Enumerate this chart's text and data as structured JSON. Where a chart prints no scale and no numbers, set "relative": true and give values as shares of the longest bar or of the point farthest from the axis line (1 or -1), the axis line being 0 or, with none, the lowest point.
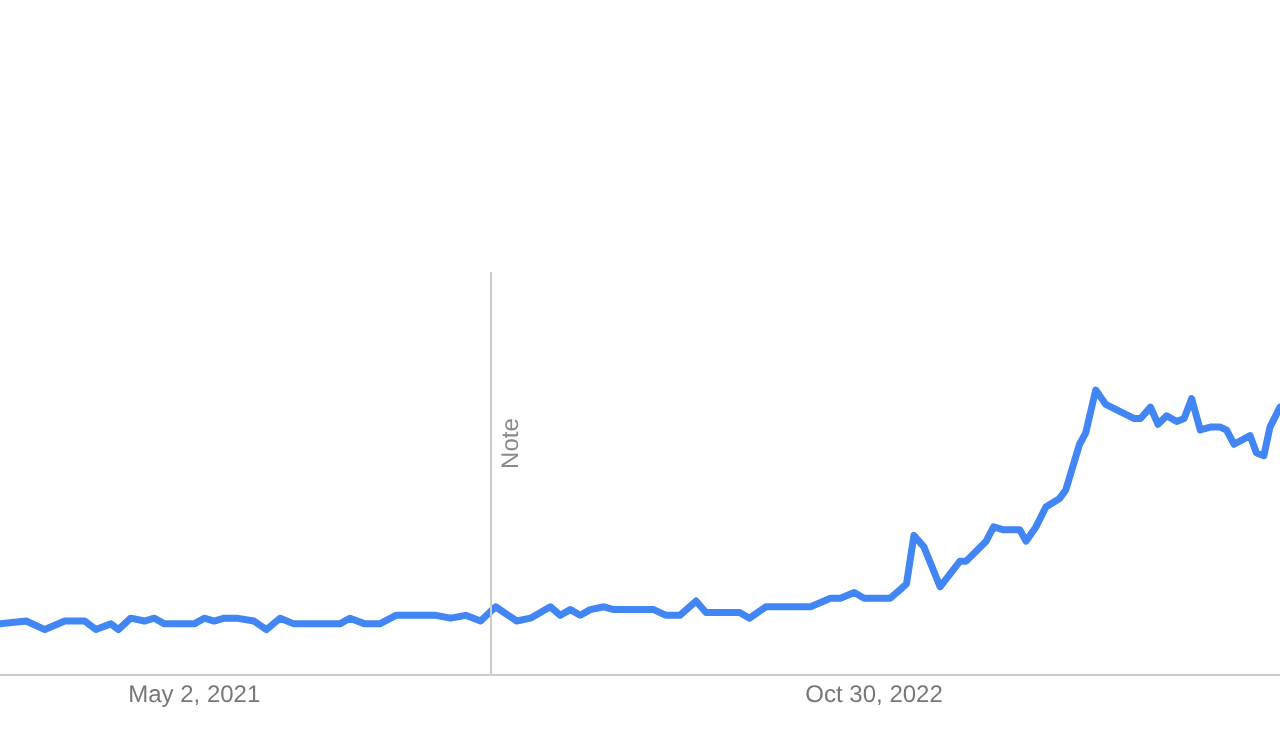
{
  "chart_data": {
    "type": "line",
    "relative": true,
    "grid": false,
    "legend": false,
    "marker": "none",
    "line_style": "solid",
    "xlim": [
      "2020-11-27",
      "2023-09-21"
    ],
    "xticks": [
      {
        "value": "2021-05-02",
        "label": "May 2, 2021"
      },
      {
        "value": "2022-10-30",
        "label": "Oct 30, 2022"
      }
    ],
    "ref_lines": [
      {
        "axis": "x",
        "value": "2021-12-26",
        "label": "Note"
      }
    ],
    "series": [
      {
        "color": "#4285f4",
        "x": [
          "2020-11-27",
          "2020-12-18",
          "2021-01-02",
          "2021-01-18",
          "2021-02-03",
          "2021-02-12",
          "2021-02-24",
          "2021-03-02",
          "2021-03-12",
          "2021-03-23",
          "2021-03-31",
          "2021-04-08",
          "2021-05-02",
          "2021-05-10",
          "2021-05-18",
          "2021-05-26",
          "2021-06-05",
          "2021-06-19",
          "2021-06-29",
          "2021-07-10",
          "2021-07-21",
          "2021-08-27",
          "2021-09-04",
          "2021-09-16",
          "2021-09-28",
          "2021-10-11",
          "2021-11-12",
          "2021-11-24",
          "2021-12-06",
          "2021-12-18",
          "2021-12-30",
          "2022-01-16",
          "2022-01-27",
          "2022-02-12",
          "2022-02-20",
          "2022-02-28",
          "2022-03-08",
          "2022-03-16",
          "2022-03-27",
          "2022-04-04",
          "2022-04-25",
          "2022-05-06",
          "2022-05-16",
          "2022-05-27",
          "2022-06-09",
          "2022-06-17",
          "2022-07-14",
          "2022-07-22",
          "2022-08-04",
          "2022-09-09",
          "2022-09-25",
          "2022-10-03",
          "2022-10-14",
          "2022-10-22",
          "2022-11-12",
          "2022-11-20",
          "2022-11-25",
          "2022-12-01",
          "2022-12-09",
          "2022-12-22",
          "2023-01-07",
          "2023-01-12",
          "2023-01-28",
          "2023-02-03",
          "2023-02-11",
          "2023-02-24",
          "2023-03-01",
          "2023-03-09",
          "2023-03-17",
          "2023-03-28",
          "2023-04-02",
          "2023-04-13",
          "2023-04-18",
          "2023-04-26",
          "2023-05-04",
          "2023-05-27",
          "2023-06-01",
          "2023-06-09",
          "2023-06-15",
          "2023-06-22",
          "2023-06-30",
          "2023-07-06",
          "2023-07-12",
          "2023-07-19",
          "2023-07-27",
          "2023-08-04",
          "2023-08-09",
          "2023-08-15",
          "2023-08-28",
          "2023-09-02",
          "2023-09-08",
          "2023-09-13",
          "2023-09-21"
        ],
        "values": [
          0.18,
          0.19,
          0.16,
          0.19,
          0.19,
          0.16,
          0.18,
          0.16,
          0.2,
          0.19,
          0.2,
          0.18,
          0.18,
          0.2,
          0.19,
          0.2,
          0.2,
          0.19,
          0.16,
          0.2,
          0.18,
          0.18,
          0.2,
          0.18,
          0.18,
          0.21,
          0.21,
          0.2,
          0.21,
          0.19,
          0.24,
          0.19,
          0.2,
          0.24,
          0.21,
          0.23,
          0.21,
          0.23,
          0.24,
          0.23,
          0.23,
          0.23,
          0.21,
          0.21,
          0.26,
          0.22,
          0.22,
          0.2,
          0.24,
          0.24,
          0.27,
          0.27,
          0.29,
          0.27,
          0.27,
          0.3,
          0.32,
          0.49,
          0.45,
          0.31,
          0.4,
          0.4,
          0.47,
          0.52,
          0.51,
          0.51,
          0.47,
          0.52,
          0.59,
          0.62,
          0.65,
          0.81,
          0.85,
          1,
          0.95,
          0.9,
          0.9,
          0.94,
          0.88,
          0.91,
          0.89,
          0.9,
          0.97,
          0.86,
          0.87,
          0.87,
          0.86,
          0.81,
          0.84,
          0.78,
          0.77,
          0.87,
          0.94
        ]
      }
    ]
  }
}
